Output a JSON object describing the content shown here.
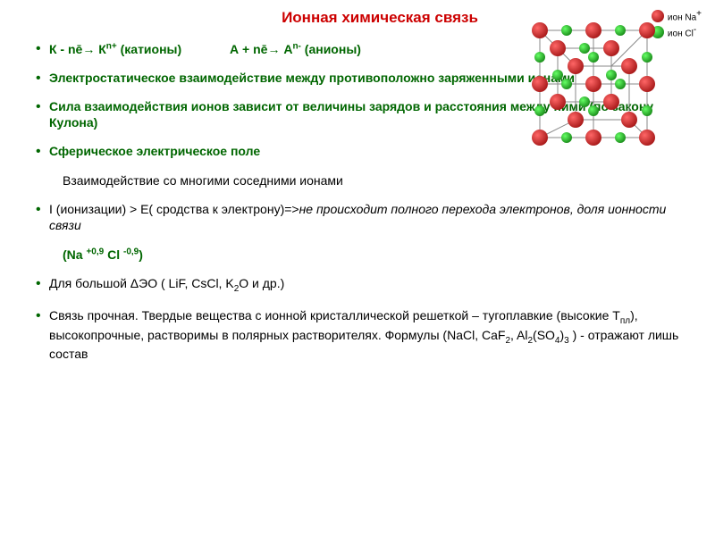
{
  "title": "Ионная химическая связь",
  "items": {
    "line1_a": "К - nē→ К",
    "line1_b": " (катионы)",
    "line1_c": "А + nē→ А",
    "line1_d": " (анионы)",
    "line1_sup1": "n+",
    "line1_sup2": "n-",
    "line2": "Электростатическое взаимодействие между противоположно заряженными ионами",
    "line3": "Сила взаимодействия ионов зависит от величины зарядов и расстояния между ними (по закону Кулона)",
    "line4a": "Сферическое электрическое поле",
    "line4b": "Взаимодействие со многими соседними ионами",
    "line5a": "I (ионизации)   >   Е( сродства к электрону)=>",
    "line5b": "не происходит полного перехода электронов, доля ионности связи",
    "line5c": "(Na ",
    "line5d": " Cl ",
    "line5e": ")",
    "line5_sup1": "+0,9",
    "line5_sup2": "-0,9",
    "line6a": "Для большой ΔЭО ( LiF, CsCl, K",
    "line6b": "O и др.)",
    "line6_sub": "2",
    "line7a": "Связь прочная. Твердые вещества с ионной  кристаллической решеткой – тугоплавкие (высокие Т",
    "line7b": "), высокопрочные, растворимы в полярных растворителях. Формулы (NaCl, CaF",
    "line7c": ",  Al",
    "line7d": "(SO",
    "line7e": ")",
    "line7f": " ) - отражают лишь состав",
    "line7_sub1": "пл",
    "line7_sub2": "2",
    "line7_sub3": "2",
    "line7_sub4": "4",
    "line7_sub5": "3"
  },
  "legend": {
    "na": "ион Na",
    "na_sup": "+",
    "cl": "ион Cl",
    "cl_sup": "-"
  },
  "colors": {
    "title": "#cc0000",
    "green": "#006600",
    "na_ion": "#8b0000",
    "cl_ion": "#006600",
    "background": "#ffffff"
  },
  "lattice": {
    "na_positions": [
      [
        10,
        10
      ],
      [
        70,
        10
      ],
      [
        130,
        10
      ],
      [
        10,
        70
      ],
      [
        70,
        70
      ],
      [
        130,
        70
      ],
      [
        10,
        130
      ],
      [
        70,
        130
      ],
      [
        130,
        130
      ],
      [
        30,
        30
      ],
      [
        90,
        30
      ],
      [
        30,
        90
      ],
      [
        90,
        90
      ],
      [
        50,
        50
      ],
      [
        110,
        50
      ],
      [
        50,
        110
      ],
      [
        110,
        110
      ]
    ],
    "cl_positions": [
      [
        43,
        13
      ],
      [
        103,
        13
      ],
      [
        43,
        73
      ],
      [
        103,
        73
      ],
      [
        43,
        133
      ],
      [
        103,
        133
      ],
      [
        13,
        43
      ],
      [
        73,
        43
      ],
      [
        133,
        43
      ],
      [
        13,
        103
      ],
      [
        73,
        103
      ],
      [
        133,
        103
      ],
      [
        63,
        33
      ],
      [
        63,
        93
      ],
      [
        33,
        63
      ],
      [
        93,
        63
      ]
    ]
  }
}
